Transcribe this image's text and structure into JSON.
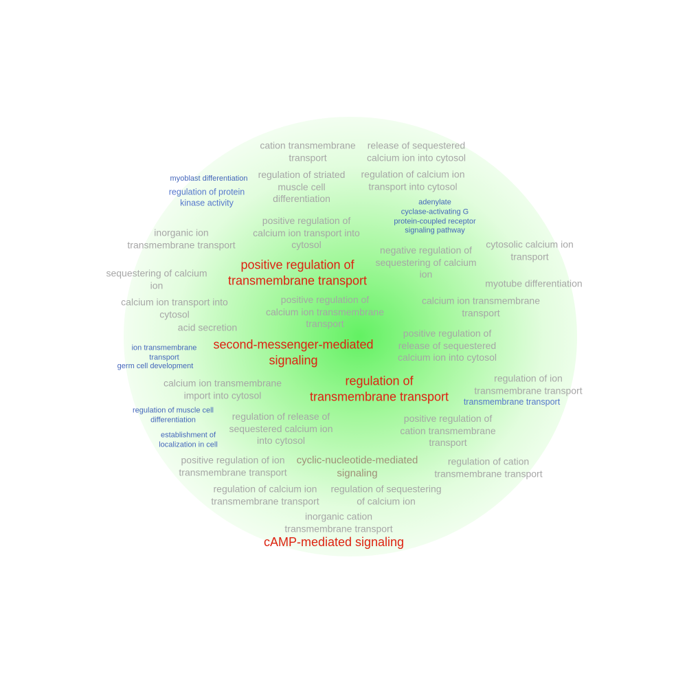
{
  "terms": [
    {
      "text": "cation transmembrane\ntransport",
      "style": "gray"
    },
    {
      "text": "release of sequestered\ncalcium ion into cytosol",
      "style": "gray"
    },
    {
      "text": "myoblast differentiation",
      "style": "blue"
    },
    {
      "text": "regulation of protein\nkinase activity",
      "style": "blue2"
    },
    {
      "text": "regulation of striated\nmuscle cell\ndifferentiation",
      "style": "gray"
    },
    {
      "text": "regulation of calcium ion\ntransport into cytosol",
      "style": "gray"
    },
    {
      "text": "adenylate\ncyclase-activating G\nprotein-coupled receptor\nsignaling pathway",
      "style": "blue"
    },
    {
      "text": "inorganic ion\ntransmembrane transport",
      "style": "gray"
    },
    {
      "text": "positive regulation of\ncalcium ion transport into\ncytosol",
      "style": "gray"
    },
    {
      "text": "negative regulation of\nsequestering of calcium\nion",
      "style": "gray"
    },
    {
      "text": "cytosolic calcium ion\ntransport",
      "style": "gray"
    },
    {
      "text": "positive regulation of\ntransmembrane transport",
      "style": "red"
    },
    {
      "text": "sequestering of calcium\nion",
      "style": "gray"
    },
    {
      "text": "myotube differentiation",
      "style": "gray"
    },
    {
      "text": "calcium ion transport into\ncytosol",
      "style": "gray"
    },
    {
      "text": "positive regulation of\ncalcium ion transmembrane\ntransport",
      "style": "gray"
    },
    {
      "text": "calcium ion transmembrane\ntransport",
      "style": "gray"
    },
    {
      "text": "acid secretion",
      "style": "gray"
    },
    {
      "text": "positive regulation of\nrelease of sequestered\ncalcium ion into cytosol",
      "style": "gray"
    },
    {
      "text": "ion transmembrane\ntransport",
      "style": "blue"
    },
    {
      "text": "second-messenger-mediated\nsignaling",
      "style": "red"
    },
    {
      "text": "germ cell development",
      "style": "blue"
    },
    {
      "text": "regulation of ion\ntransmembrane transport",
      "style": "gray"
    },
    {
      "text": "calcium ion transmembrane\nimport into cytosol",
      "style": "gray"
    },
    {
      "text": "regulation of\ntransmembrane transport",
      "style": "red"
    },
    {
      "text": "transmembrane transport",
      "style": "blue2"
    },
    {
      "text": "regulation of muscle cell\ndifferentiation",
      "style": "blue"
    },
    {
      "text": "regulation of release of\nsequestered calcium ion\ninto cytosol",
      "style": "gray"
    },
    {
      "text": "positive regulation of\ncation transmembrane\ntransport",
      "style": "gray"
    },
    {
      "text": "establishment of\nlocalization in cell",
      "style": "blue"
    },
    {
      "text": "positive regulation of ion\ntransmembrane transport",
      "style": "gray"
    },
    {
      "text": "cyclic-nucleotide-mediated\nsignaling",
      "style": "brown"
    },
    {
      "text": "regulation of cation\ntransmembrane transport",
      "style": "gray"
    },
    {
      "text": "regulation of calcium ion\ntransmembrane transport",
      "style": "gray"
    },
    {
      "text": "regulation of sequestering\nof calcium ion",
      "style": "gray"
    },
    {
      "text": "inorganic cation\ntransmembrane transport",
      "style": "gray"
    },
    {
      "text": "cAMP-mediated signaling",
      "style": "red"
    }
  ]
}
